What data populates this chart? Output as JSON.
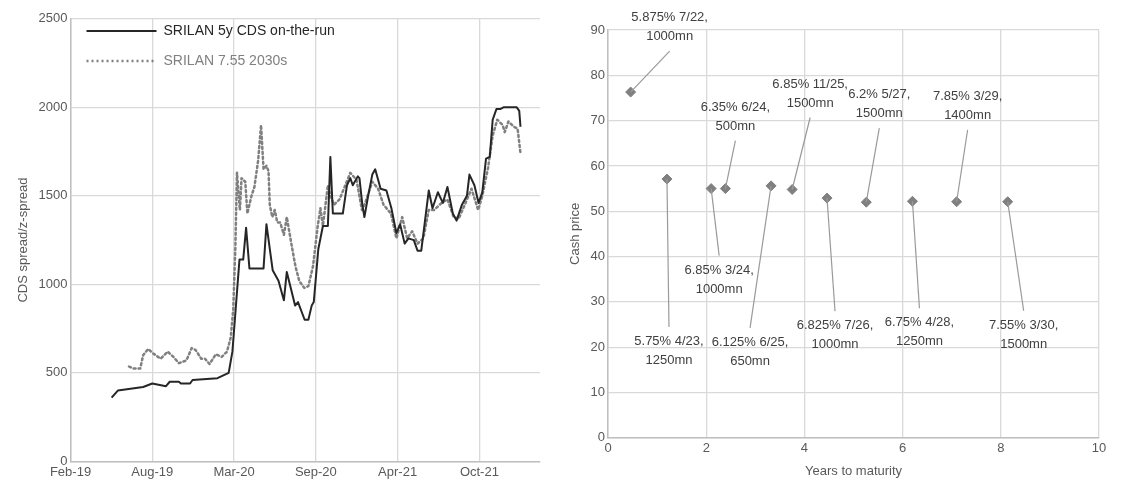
{
  "chart_data": [
    {
      "type": "line",
      "ylabel": "CDS spread/z-spread",
      "xlim": [
        "2019-02-10",
        "2022-03-17"
      ],
      "xticks": [
        {
          "value": "2019-02-10",
          "label": "Feb-19"
        },
        {
          "value": "2019-08-26",
          "label": "Aug-19"
        },
        {
          "value": "2020-03-10",
          "label": "Mar-20"
        },
        {
          "value": "2020-09-23",
          "label": "Sep-20"
        },
        {
          "value": "2021-04-08",
          "label": "Apr-21"
        },
        {
          "value": "2021-10-22",
          "label": "Oct-21"
        }
      ],
      "ylim": [
        0,
        2500
      ],
      "yticks": [
        0,
        500,
        1000,
        1500,
        2000,
        2500
      ],
      "grid": true,
      "legend": "top left",
      "series": [
        {
          "name": "SRILAN 5y CDS on-the-run",
          "color": "#262626",
          "line_style": "solid",
          "x": [
            "2019-05-20",
            "2019-06-04",
            "2019-08-04",
            "2019-08-26",
            "2019-09-28",
            "2019-10-07",
            "2019-10-29",
            "2019-11-03",
            "2019-11-25",
            "2019-12-01",
            "2020-01-30",
            "2020-02-26",
            "2020-03-06",
            "2020-03-23",
            "2020-04-01",
            "2020-04-08",
            "2020-04-16",
            "2020-05-20",
            "2020-05-27",
            "2020-06-11",
            "2020-06-25",
            "2020-07-08",
            "2020-07-15",
            "2020-08-04",
            "2020-08-11",
            "2020-08-27",
            "2020-09-05",
            "2020-09-13",
            "2020-09-18",
            "2020-09-29",
            "2020-10-10",
            "2020-10-22",
            "2020-10-28",
            "2020-11-03",
            "2020-11-27",
            "2020-12-07",
            "2020-12-15",
            "2020-12-21",
            "2021-01-02",
            "2021-01-06",
            "2021-01-13",
            "2021-01-18",
            "2021-01-27",
            "2021-02-06",
            "2021-02-13",
            "2021-02-26",
            "2021-03-12",
            "2021-03-24",
            "2021-04-05",
            "2021-04-14",
            "2021-04-25",
            "2021-05-04",
            "2021-05-17",
            "2021-05-26",
            "2021-06-04",
            "2021-06-22",
            "2021-07-01",
            "2021-07-14",
            "2021-07-26",
            "2021-08-06",
            "2021-08-19",
            "2021-08-28",
            "2021-09-10",
            "2021-09-22",
            "2021-09-28",
            "2021-10-10",
            "2021-10-20",
            "2021-10-29",
            "2021-11-07",
            "2021-11-16",
            "2021-11-23",
            "2021-12-02",
            "2021-12-11",
            "2021-12-19",
            "2022-01-20",
            "2022-01-26",
            "2022-01-29"
          ],
          "values": [
            360,
            400,
            420,
            440,
            425,
            450,
            450,
            440,
            440,
            460,
            470,
            500,
            620,
            1140,
            1140,
            1320,
            1090,
            1090,
            1340,
            1080,
            1020,
            910,
            1070,
            880,
            900,
            800,
            800,
            880,
            900,
            1200,
            1330,
            1330,
            1720,
            1400,
            1400,
            1560,
            1600,
            1560,
            1610,
            1600,
            1450,
            1380,
            1500,
            1620,
            1650,
            1540,
            1530,
            1430,
            1290,
            1340,
            1230,
            1260,
            1250,
            1190,
            1190,
            1530,
            1430,
            1520,
            1460,
            1550,
            1400,
            1360,
            1450,
            1500,
            1620,
            1560,
            1460,
            1520,
            1710,
            1720,
            1930,
            1990,
            1990,
            2000,
            2000,
            1980,
            1890
          ]
        },
        {
          "name": "SRILAN 7.55 2030s",
          "color": "#808080",
          "line_style": "dotted",
          "x": [
            "2019-07-01",
            "2019-07-10",
            "2019-07-28",
            "2019-08-04",
            "2019-08-16",
            "2019-08-28",
            "2019-09-15",
            "2019-10-02",
            "2019-10-16",
            "2019-10-29",
            "2019-11-16",
            "2019-11-29",
            "2019-12-08",
            "2019-12-22",
            "2019-12-31",
            "2020-01-11",
            "2020-01-26",
            "2020-02-09",
            "2020-02-22",
            "2020-03-02",
            "2020-03-08",
            "2020-03-13",
            "2020-03-17",
            "2020-03-24",
            "2020-03-28",
            "2020-04-06",
            "2020-04-11",
            "2020-04-21",
            "2020-04-28",
            "2020-05-07",
            "2020-05-14",
            "2020-05-20",
            "2020-05-27",
            "2020-06-01",
            "2020-06-04",
            "2020-06-10",
            "2020-06-16",
            "2020-06-22",
            "2020-06-29",
            "2020-07-08",
            "2020-07-15",
            "2020-07-26",
            "2020-08-05",
            "2020-08-14",
            "2020-08-26",
            "2020-09-05",
            "2020-09-16",
            "2020-09-27",
            "2020-10-04",
            "2020-10-10",
            "2020-10-22",
            "2020-10-28",
            "2020-11-06",
            "2020-11-19",
            "2020-12-03",
            "2020-12-15",
            "2020-12-30",
            "2021-01-12",
            "2021-01-20",
            "2021-02-06",
            "2021-02-20",
            "2021-03-05",
            "2021-03-23",
            "2021-04-05",
            "2021-04-19",
            "2021-05-01",
            "2021-05-13",
            "2021-05-26",
            "2021-06-09",
            "2021-06-22",
            "2021-07-05",
            "2021-07-23",
            "2021-08-06",
            "2021-08-21",
            "2021-09-02",
            "2021-09-15",
            "2021-10-03",
            "2021-10-19",
            "2021-10-29",
            "2021-11-12",
            "2021-11-23",
            "2021-12-04",
            "2021-12-17",
            "2021-12-22",
            "2021-12-31",
            "2022-01-13",
            "2022-01-22",
            "2022-01-26",
            "2022-01-29"
          ],
          "values": [
            536,
            525,
            525,
            600,
            635,
            610,
            580,
            620,
            590,
            555,
            570,
            640,
            630,
            580,
            580,
            550,
            605,
            590,
            620,
            700,
            860,
            1200,
            1630,
            1420,
            1600,
            1580,
            1400,
            1500,
            1550,
            1700,
            1900,
            1650,
            1670,
            1640,
            1450,
            1380,
            1420,
            1350,
            1350,
            1280,
            1380,
            1230,
            1100,
            1020,
            980,
            990,
            1100,
            1320,
            1430,
            1330,
            1560,
            1500,
            1450,
            1480,
            1560,
            1630,
            1590,
            1420,
            1460,
            1580,
            1540,
            1450,
            1400,
            1260,
            1380,
            1260,
            1300,
            1230,
            1260,
            1420,
            1420,
            1460,
            1480,
            1380,
            1370,
            1440,
            1540,
            1420,
            1500,
            1660,
            1840,
            1930,
            1900,
            1860,
            1920,
            1890,
            1880,
            1800,
            1740
          ]
        }
      ]
    },
    {
      "type": "scatter",
      "xlabel": "Years to maturity",
      "ylabel": "Cash price",
      "xlim": [
        0,
        10
      ],
      "xticks": [
        0,
        2,
        4,
        6,
        8,
        10
      ],
      "ylim": [
        0,
        90
      ],
      "yticks": [
        0,
        10,
        20,
        30,
        40,
        50,
        60,
        70,
        80,
        90
      ],
      "grid": true,
      "marker": "diamond",
      "series": [
        {
          "color": "#808080",
          "x": [
            0.46,
            1.2,
            2.1,
            2.39,
            3.32,
            3.75,
            4.46,
            5.26,
            6.2,
            7.1,
            8.14
          ],
          "values": [
            76.3,
            57.1,
            55.0,
            55.0,
            55.6,
            54.8,
            52.9,
            52.0,
            52.2,
            52.1,
            52.1
          ]
        }
      ],
      "annotations": [
        {
          "text": "5.875% 7/22, 1000mn",
          "x": 0.46,
          "y": 76.3
        },
        {
          "text": "5.75% 4/23, 1250mn",
          "x": 1.2,
          "y": 57.1
        },
        {
          "text": "6.85% 3/24, 1000mn",
          "x": 2.1,
          "y": 55.0
        },
        {
          "text": "6.35% 6/24, 500mn",
          "x": 2.39,
          "y": 55.0
        },
        {
          "text": "6.125% 6/25, 650mn",
          "x": 3.32,
          "y": 55.6
        },
        {
          "text": "6.85% 11/25, 1500mn",
          "x": 3.75,
          "y": 54.8
        },
        {
          "text": "6.825% 7/26, 1000mn",
          "x": 4.46,
          "y": 52.9
        },
        {
          "text": "6.2% 5/27, 1500mn",
          "x": 5.26,
          "y": 52.0
        },
        {
          "text": "6.75% 4/28, 1250mn",
          "x": 6.2,
          "y": 52.2
        },
        {
          "text": "7.85% 3/29, 1400mn",
          "x": 7.1,
          "y": 52.1
        },
        {
          "text": "7.55% 3/30, 1500mn",
          "x": 8.14,
          "y": 52.1
        }
      ]
    }
  ]
}
